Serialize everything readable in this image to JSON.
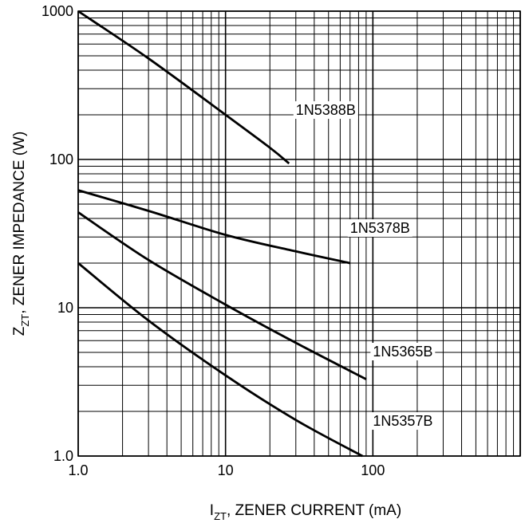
{
  "chart_data": {
    "type": "line",
    "xscale": "log",
    "yscale": "log",
    "xlim": [
      1.0,
      1000
    ],
    "ylim": [
      1.0,
      1000
    ],
    "grid": true,
    "xlabel": {
      "main": "I",
      "sub": "ZT",
      "rest": ", ZENER CURRENT (mA)"
    },
    "ylabel": {
      "main": "Z",
      "sub": "ZT",
      "rest": ", ZENER IMPEDANCE (W)"
    },
    "x_ticks": [
      {
        "value": 1,
        "label": "1.0"
      },
      {
        "value": 10,
        "label": "10"
      },
      {
        "value": 100,
        "label": "100"
      }
    ],
    "y_ticks": [
      {
        "value": 1,
        "label": "1.0"
      },
      {
        "value": 10,
        "label": "10"
      },
      {
        "value": 100,
        "label": "100"
      },
      {
        "value": 1000,
        "label": "1000"
      }
    ],
    "series": [
      {
        "name": "1N5388B",
        "x": [
          1.0,
          3,
          10,
          20,
          27
        ],
        "y": [
          1000,
          480,
          200,
          120,
          94
        ]
      },
      {
        "name": "1N5378B",
        "x": [
          1.0,
          3,
          10,
          30,
          70
        ],
        "y": [
          62,
          45,
          31,
          24,
          20
        ]
      },
      {
        "name": "1N5365B",
        "x": [
          1.0,
          3,
          10,
          30,
          90
        ],
        "y": [
          44,
          21,
          10.5,
          5.8,
          3.3
        ]
      },
      {
        "name": "1N5357B",
        "x": [
          1.0,
          3,
          10,
          30,
          85
        ],
        "y": [
          20,
          8.2,
          3.5,
          1.75,
          1.0
        ]
      }
    ],
    "line_color": "#000000",
    "grid_color": "#000000"
  }
}
